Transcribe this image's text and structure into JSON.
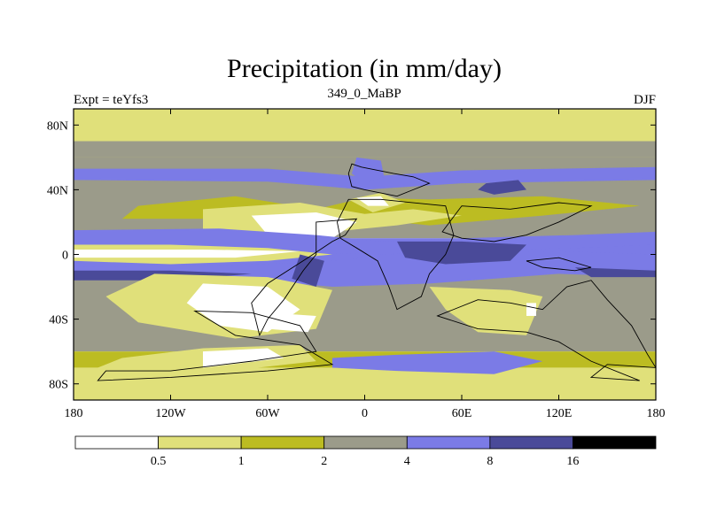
{
  "chart_data": {
    "type": "heatmap",
    "title": "Precipitation (in mm/day)",
    "subtitle_left": "Expt = teYfs3",
    "subtitle_center": "349_0_MaBP",
    "subtitle_right": "DJF",
    "x_range": [
      -180,
      180
    ],
    "y_range": [
      -90,
      90
    ],
    "x_ticks": [
      {
        "value": -180,
        "label": "180"
      },
      {
        "value": -120,
        "label": "120W"
      },
      {
        "value": -60,
        "label": "60W"
      },
      {
        "value": 0,
        "label": "0"
      },
      {
        "value": 60,
        "label": "60E"
      },
      {
        "value": 120,
        "label": "120E"
      },
      {
        "value": 180,
        "label": "180"
      }
    ],
    "y_ticks": [
      {
        "value": 80,
        "label": "80N"
      },
      {
        "value": 40,
        "label": "40N"
      },
      {
        "value": 0,
        "label": "0"
      },
      {
        "value": -40,
        "label": "40S"
      },
      {
        "value": -80,
        "label": "80S"
      }
    ],
    "colorbar": {
      "boundaries": [
        "0.5",
        "1",
        "2",
        "4",
        "8",
        "16"
      ],
      "colors": [
        "#ffffff",
        "#e0e07a",
        "#bcbc22",
        "#9b9b8a",
        "#7b7be6",
        "#4a4a99",
        "#000000"
      ]
    },
    "zonal_bands": [
      {
        "lat": [
          70,
          90
        ],
        "level": 1
      },
      {
        "lat": [
          60,
          70
        ],
        "level": 2
      },
      {
        "lat": [
          10,
          60
        ],
        "level": 3
      },
      {
        "lat": [
          -10,
          10
        ],
        "level": 4
      },
      {
        "lat": [
          -60,
          -10
        ],
        "level": 3
      },
      {
        "lat": [
          -70,
          -60
        ],
        "level": 2
      },
      {
        "lat": [
          -90,
          -70
        ],
        "level": 1
      }
    ],
    "regions": [
      {
        "level": 3,
        "pts": [
          [
            -180,
            70
          ],
          [
            180,
            70
          ],
          [
            180,
            60
          ],
          [
            -180,
            60
          ]
        ]
      },
      {
        "level": 4,
        "pts": [
          [
            -180,
            53
          ],
          [
            -60,
            53
          ],
          [
            0,
            48
          ],
          [
            60,
            52
          ],
          [
            180,
            54
          ],
          [
            180,
            46
          ],
          [
            60,
            44
          ],
          [
            0,
            40
          ],
          [
            -60,
            45
          ],
          [
            -180,
            46
          ]
        ]
      },
      {
        "level": 2,
        "pts": [
          [
            -140,
            30
          ],
          [
            -80,
            36
          ],
          [
            -30,
            28
          ],
          [
            0,
            35
          ],
          [
            40,
            34
          ],
          [
            110,
            36
          ],
          [
            170,
            30
          ],
          [
            110,
            24
          ],
          [
            40,
            18
          ],
          [
            0,
            22
          ],
          [
            -40,
            18
          ],
          [
            -90,
            22
          ],
          [
            -150,
            22
          ]
        ]
      },
      {
        "level": 1,
        "pts": [
          [
            -100,
            28
          ],
          [
            -40,
            32
          ],
          [
            0,
            25
          ],
          [
            30,
            28
          ],
          [
            60,
            24
          ],
          [
            20,
            18
          ],
          [
            -40,
            12
          ],
          [
            -100,
            14
          ]
        ]
      },
      {
        "level": 0,
        "pts": [
          [
            -70,
            24
          ],
          [
            -30,
            26
          ],
          [
            -5,
            20
          ],
          [
            -20,
            10
          ],
          [
            -60,
            12
          ]
        ]
      },
      {
        "level": 4,
        "pts": [
          [
            -180,
            15
          ],
          [
            -90,
            16
          ],
          [
            -30,
            12
          ],
          [
            10,
            8
          ],
          [
            60,
            10
          ],
          [
            130,
            12
          ],
          [
            180,
            14
          ],
          [
            180,
            6
          ],
          [
            130,
            4
          ],
          [
            60,
            2
          ],
          [
            10,
            0
          ],
          [
            -60,
            2
          ],
          [
            -180,
            4
          ]
        ]
      },
      {
        "level": 1,
        "pts": [
          [
            -180,
            6
          ],
          [
            -120,
            6
          ],
          [
            -60,
            4
          ],
          [
            -20,
            0
          ],
          [
            -60,
            -4
          ],
          [
            -120,
            -6
          ],
          [
            -180,
            -4
          ]
        ]
      },
      {
        "level": 0,
        "pts": [
          [
            -180,
            3
          ],
          [
            -100,
            3
          ],
          [
            -40,
            2
          ],
          [
            -80,
            -2
          ],
          [
            -180,
            -2
          ]
        ]
      },
      {
        "level": 4,
        "pts": [
          [
            -180,
            -8
          ],
          [
            -60,
            -6
          ],
          [
            -20,
            -4
          ],
          [
            20,
            0
          ],
          [
            120,
            2
          ],
          [
            180,
            0
          ],
          [
            180,
            -14
          ],
          [
            120,
            -12
          ],
          [
            40,
            -18
          ],
          [
            -20,
            -20
          ],
          [
            -90,
            -14
          ],
          [
            -180,
            -16
          ]
        ]
      },
      {
        "level": 5,
        "pts": [
          [
            -180,
            -10
          ],
          [
            -120,
            -10
          ],
          [
            -70,
            -12
          ],
          [
            -120,
            -16
          ],
          [
            -180,
            -16
          ]
        ]
      },
      {
        "level": 5,
        "pts": [
          [
            20,
            8
          ],
          [
            60,
            8
          ],
          [
            100,
            6
          ],
          [
            90,
            -4
          ],
          [
            50,
            -6
          ],
          [
            25,
            -2
          ]
        ]
      },
      {
        "level": 5,
        "pts": [
          [
            -40,
            0
          ],
          [
            -25,
            -4
          ],
          [
            -30,
            -20
          ],
          [
            -45,
            -15
          ]
        ]
      },
      {
        "level": 5,
        "pts": [
          [
            130,
            -8
          ],
          [
            180,
            -10
          ],
          [
            180,
            -14
          ],
          [
            140,
            -14
          ]
        ]
      },
      {
        "level": 4,
        "pts": [
          [
            -5,
            60
          ],
          [
            10,
            58
          ],
          [
            12,
            48
          ],
          [
            0,
            44
          ],
          [
            -8,
            50
          ]
        ]
      },
      {
        "level": 5,
        "pts": [
          [
            75,
            44
          ],
          [
            95,
            46
          ],
          [
            100,
            40
          ],
          [
            80,
            37
          ],
          [
            70,
            40
          ]
        ]
      },
      {
        "level": 1,
        "pts": [
          [
            -130,
            -12
          ],
          [
            -60,
            -14
          ],
          [
            -20,
            -22
          ],
          [
            -30,
            -46
          ],
          [
            -80,
            -52
          ],
          [
            -140,
            -42
          ],
          [
            -160,
            -26
          ]
        ]
      },
      {
        "level": 0,
        "pts": [
          [
            -100,
            -18
          ],
          [
            -60,
            -20
          ],
          [
            -40,
            -34
          ],
          [
            -60,
            -48
          ],
          [
            -90,
            -44
          ],
          [
            -110,
            -30
          ]
        ]
      },
      {
        "level": 0,
        "pts": [
          [
            -60,
            -36
          ],
          [
            -30,
            -38
          ],
          [
            -35,
            -48
          ],
          [
            -60,
            -46
          ]
        ]
      },
      {
        "level": 1,
        "pts": [
          [
            -150,
            -64
          ],
          [
            -100,
            -58
          ],
          [
            -40,
            -56
          ],
          [
            -30,
            -66
          ],
          [
            -120,
            -76
          ],
          [
            -170,
            -72
          ]
        ]
      },
      {
        "level": 0,
        "pts": [
          [
            -100,
            -60
          ],
          [
            -60,
            -58
          ],
          [
            -50,
            -64
          ],
          [
            -100,
            -70
          ]
        ]
      },
      {
        "level": 4,
        "pts": [
          [
            -20,
            -64
          ],
          [
            20,
            -62
          ],
          [
            80,
            -60
          ],
          [
            110,
            -66
          ],
          [
            80,
            -74
          ],
          [
            20,
            -72
          ],
          [
            -20,
            -70
          ]
        ]
      },
      {
        "level": 1,
        "pts": [
          [
            40,
            -20
          ],
          [
            90,
            -22
          ],
          [
            110,
            -26
          ],
          [
            100,
            -50
          ],
          [
            70,
            -48
          ],
          [
            50,
            -34
          ]
        ]
      },
      {
        "level": 0,
        "pts": [
          [
            100,
            -30
          ],
          [
            106,
            -30
          ],
          [
            106,
            -38
          ],
          [
            100,
            -38
          ]
        ]
      },
      {
        "level": 1,
        "pts": [
          [
            -10,
            34
          ],
          [
            10,
            38
          ],
          [
            25,
            32
          ],
          [
            5,
            26
          ]
        ]
      },
      {
        "level": 0,
        "pts": [
          [
            -5,
            35
          ],
          [
            10,
            36
          ],
          [
            15,
            30
          ],
          [
            2,
            30
          ]
        ]
      }
    ],
    "coastlines": [
      [
        [
          -8,
          56
        ],
        [
          -2,
          54
        ],
        [
          8,
          52
        ],
        [
          18,
          50
        ],
        [
          30,
          48
        ],
        [
          40,
          44
        ],
        [
          30,
          40
        ],
        [
          20,
          36
        ],
        [
          10,
          38
        ],
        [
          0,
          40
        ],
        [
          -8,
          42
        ],
        [
          -10,
          50
        ]
      ],
      [
        [
          -10,
          34
        ],
        [
          10,
          34
        ],
        [
          30,
          32
        ],
        [
          50,
          30
        ],
        [
          55,
          12
        ],
        [
          50,
          0
        ],
        [
          40,
          -12
        ],
        [
          35,
          -26
        ],
        [
          20,
          -34
        ],
        [
          15,
          -20
        ],
        [
          8,
          -4
        ],
        [
          -5,
          4
        ],
        [
          -15,
          10
        ],
        [
          -17,
          20
        ]
      ],
      [
        [
          60,
          30
        ],
        [
          90,
          28
        ],
        [
          120,
          32
        ],
        [
          140,
          30
        ],
        [
          120,
          20
        ],
        [
          100,
          12
        ],
        [
          80,
          8
        ],
        [
          60,
          10
        ],
        [
          48,
          14
        ]
      ],
      [
        [
          -30,
          20
        ],
        [
          -5,
          22
        ],
        [
          -12,
          12
        ],
        [
          -20,
          8
        ],
        [
          -35,
          -2
        ],
        [
          -60,
          -18
        ],
        [
          -70,
          -30
        ],
        [
          -65,
          -50
        ],
        [
          -60,
          -40
        ],
        [
          -50,
          -28
        ],
        [
          -38,
          -10
        ],
        [
          -30,
          0
        ]
      ],
      [
        [
          -105,
          -35
        ],
        [
          -70,
          -36
        ],
        [
          -40,
          -44
        ],
        [
          -30,
          -60
        ],
        [
          -70,
          -66
        ],
        [
          -120,
          -72
        ],
        [
          -160,
          -72
        ],
        [
          -165,
          -78
        ],
        [
          -120,
          -76
        ],
        [
          -60,
          -72
        ],
        [
          -20,
          -68
        ],
        [
          -40,
          -56
        ],
        [
          -80,
          -50
        ]
      ],
      [
        [
          45,
          -38
        ],
        [
          70,
          -28
        ],
        [
          90,
          -30
        ],
        [
          110,
          -34
        ],
        [
          125,
          -20
        ],
        [
          140,
          -16
        ],
        [
          150,
          -28
        ],
        [
          165,
          -44
        ],
        [
          175,
          -62
        ],
        [
          180,
          -70
        ],
        [
          150,
          -68
        ],
        [
          140,
          -76
        ],
        [
          170,
          -78
        ],
        [
          140,
          -66
        ],
        [
          120,
          -54
        ],
        [
          100,
          -48
        ],
        [
          70,
          -46
        ]
      ],
      [
        [
          100,
          -4
        ],
        [
          120,
          -2
        ],
        [
          140,
          -8
        ],
        [
          130,
          -10
        ],
        [
          110,
          -8
        ]
      ]
    ]
  }
}
